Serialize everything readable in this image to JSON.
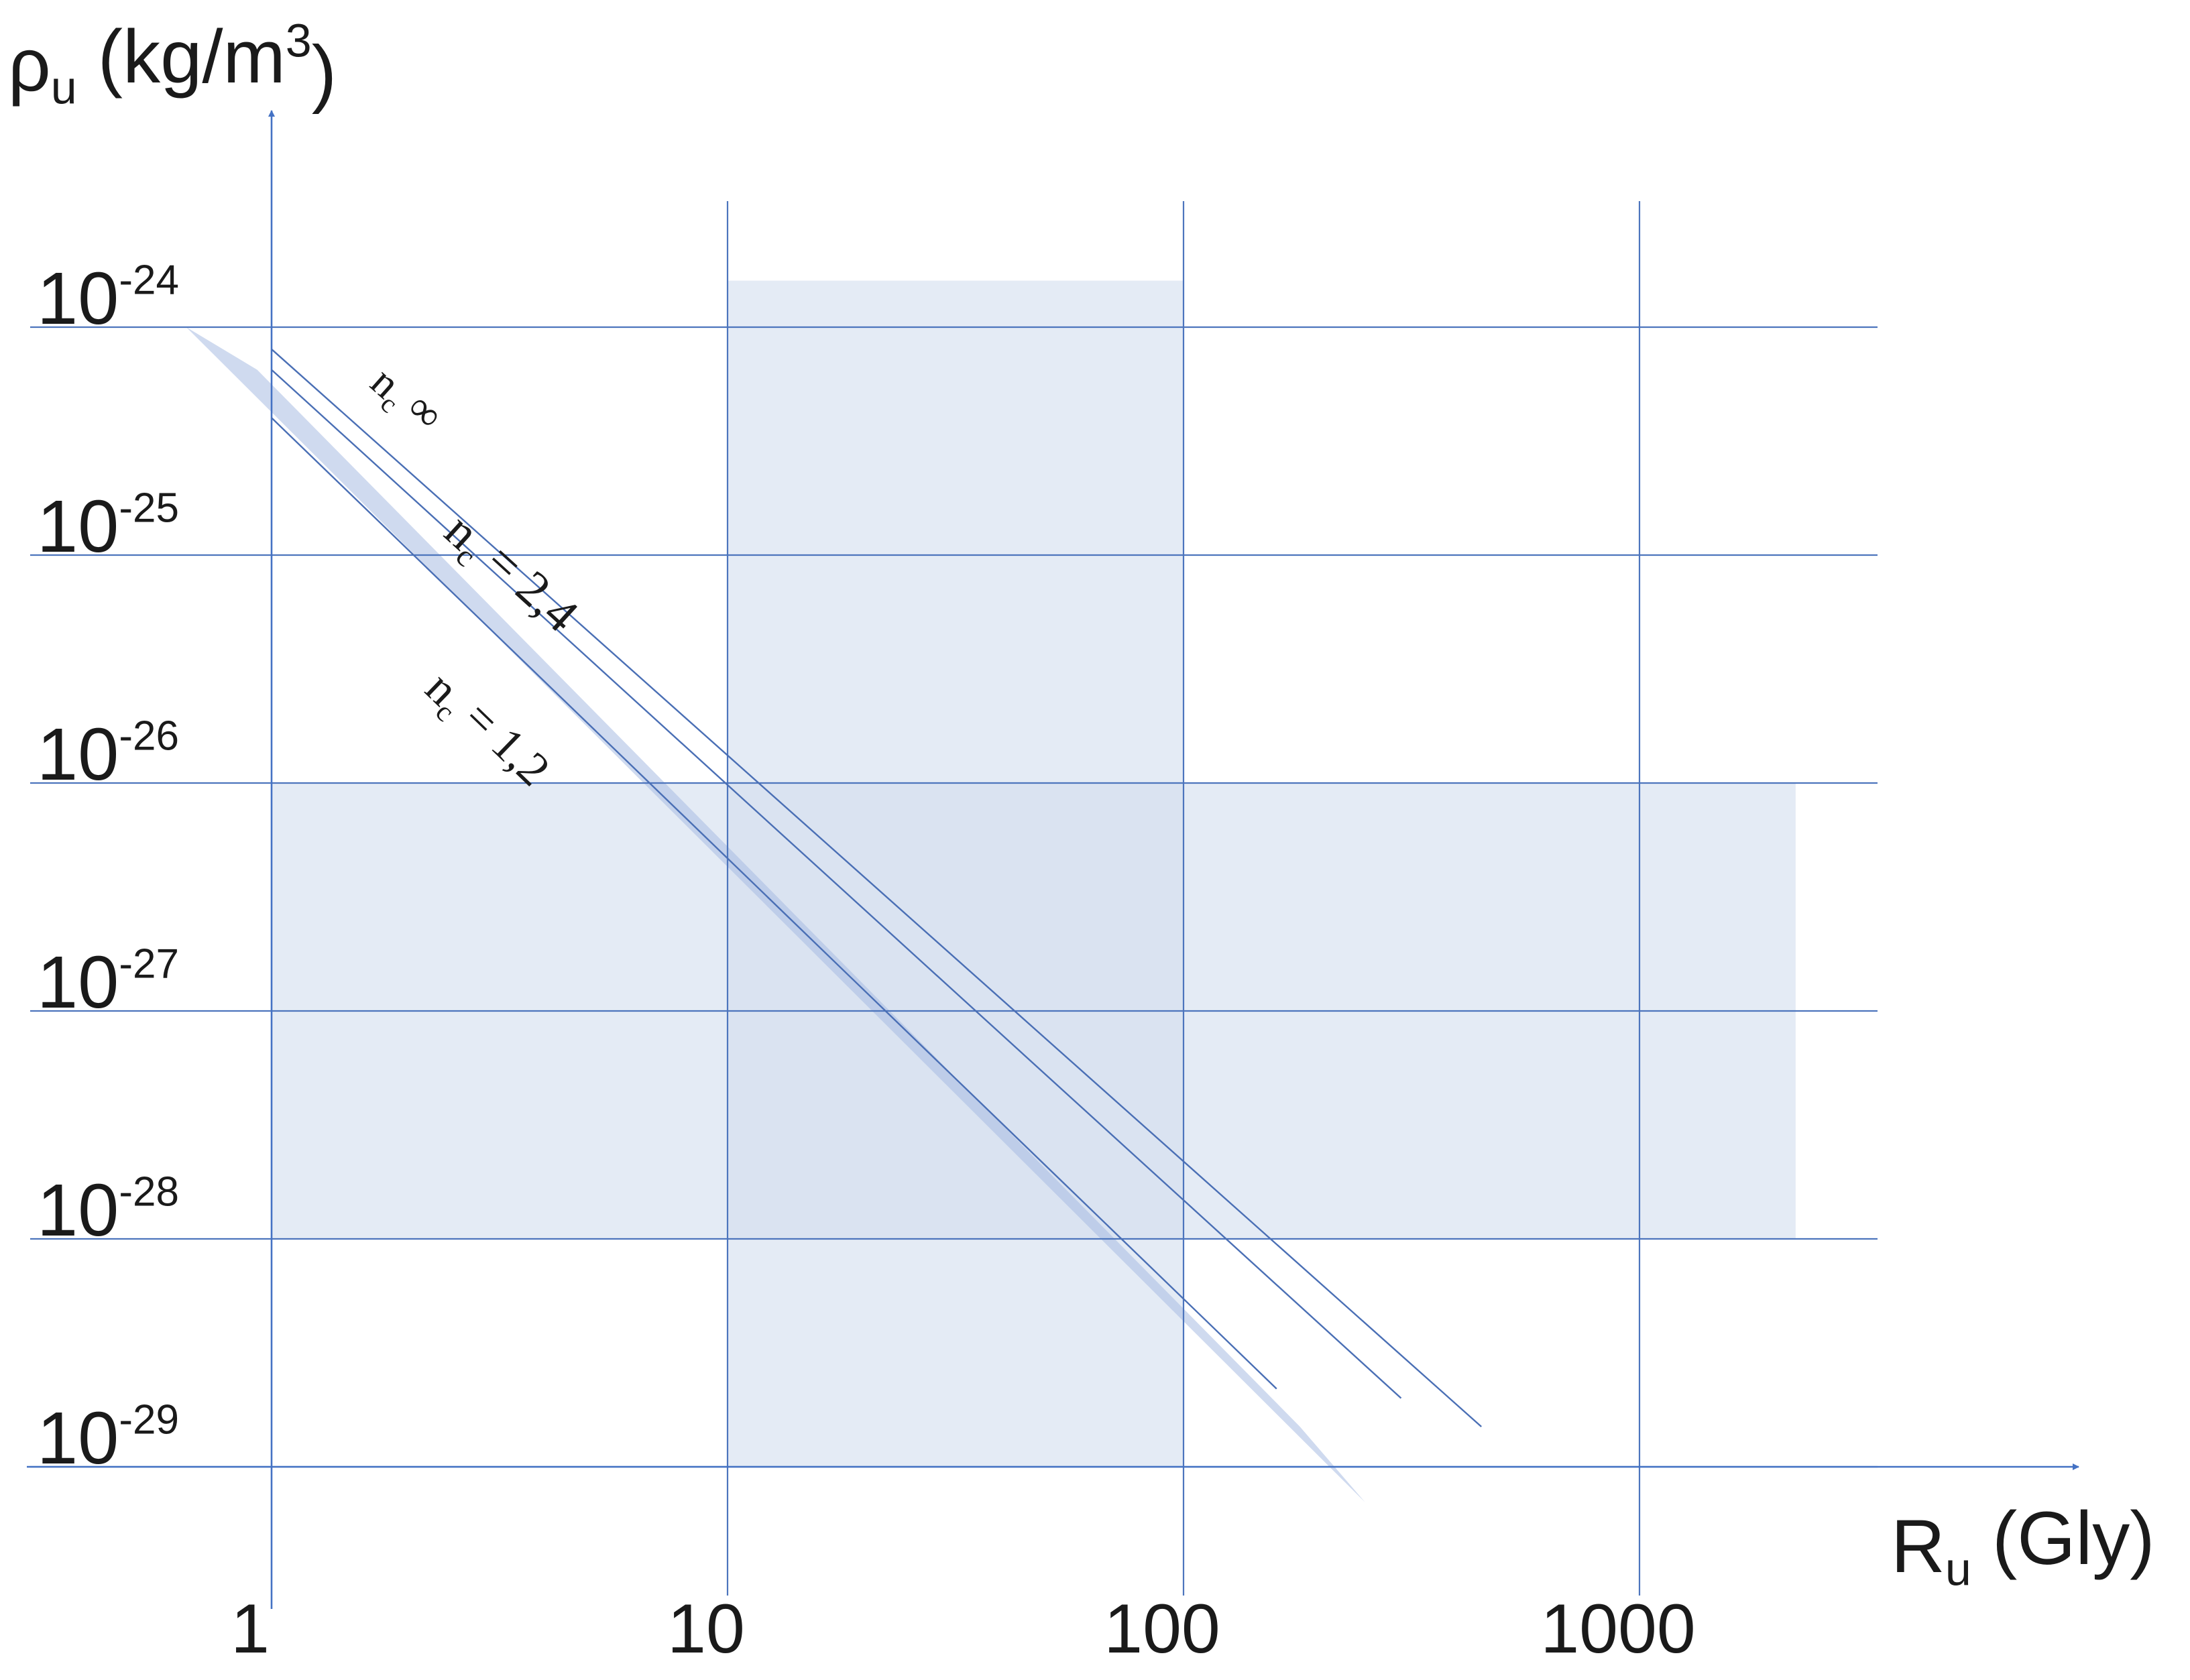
{
  "chart_data": {
    "type": "line",
    "title": "",
    "xlabel": {
      "main": "R",
      "sub": "u",
      "rest": " (Gly)"
    },
    "ylabel": {
      "main": "ρ",
      "sub": "u",
      "rest": " (kg/m",
      "sup": "3",
      "close": ")"
    },
    "x_scale": "log",
    "y_scale": "log",
    "x_ticks": [
      {
        "value": 1,
        "label": "1"
      },
      {
        "value": 10,
        "label": "10"
      },
      {
        "value": 100,
        "label": "100"
      },
      {
        "value": 1000,
        "label": "1000"
      }
    ],
    "y_ticks": [
      {
        "value": 1e-24,
        "base": "10",
        "exp": "-24"
      },
      {
        "value": 1e-25,
        "base": "10",
        "exp": "-25"
      },
      {
        "value": 1e-26,
        "base": "10",
        "exp": "-26"
      },
      {
        "value": 1e-27,
        "base": "10",
        "exp": "-27"
      },
      {
        "value": 1e-28,
        "base": "10",
        "exp": "-28"
      },
      {
        "value": 1e-29,
        "base": "10",
        "exp": "-29"
      }
    ],
    "grid": true,
    "shaded_regions": [
      {
        "x_range": [
          10,
          100
        ],
        "y_range": [
          1e-29,
          1.6e-24
        ]
      },
      {
        "x_range": [
          1,
          2200
        ],
        "y_range": [
          1e-28,
          1e-26
        ]
      }
    ],
    "band": {
      "corners": [
        {
          "x": 0.65,
          "y": 1e-24
        },
        {
          "x": 0.93,
          "y": 6.5e-25
        },
        {
          "x": 180,
          "y": 1.5e-29
        },
        {
          "x": 250,
          "y": 7e-30
        }
      ]
    },
    "series": [
      {
        "name": "n",
        "sub": "c",
        "rest": " ∞",
        "x": [
          1,
          450
        ],
        "y": [
          8e-25,
          1.5e-29
        ]
      },
      {
        "name": "n",
        "sub": "c",
        "rest": " = 2,4",
        "x": [
          1,
          300
        ],
        "y": [
          6.5e-25,
          2e-29
        ]
      },
      {
        "name": "n",
        "sub": "c",
        "rest": " = 1,2",
        "x": [
          1,
          160
        ],
        "y": [
          4e-25,
          2.2e-29
        ]
      }
    ],
    "colors": {
      "shade": "#d4deef",
      "band": "#a7bce2",
      "line": "#4a6fb5",
      "grid": "#4d75bd",
      "axis": "#4472c4",
      "text": "#1a1a1a"
    }
  }
}
